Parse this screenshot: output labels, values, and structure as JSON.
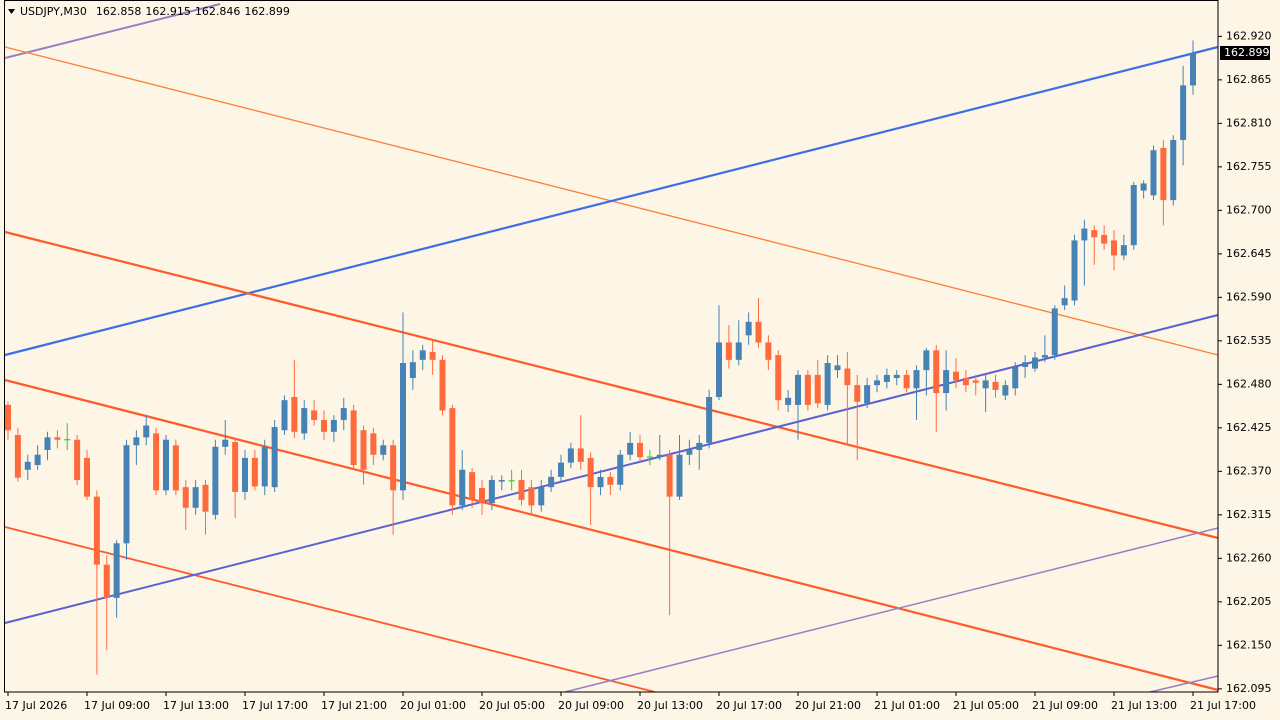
{
  "chart_data": {
    "type": "candlestick",
    "symbol": "USDJPY,M30",
    "categories": [
      "17 Jul 2026",
      null,
      null,
      null,
      null,
      null,
      null,
      null,
      "17 Jul 09:00",
      null,
      null,
      null,
      null,
      null,
      null,
      null,
      "17 Jul 13:00",
      null,
      null,
      null,
      null,
      null,
      null,
      null,
      "17 Jul 17:00",
      null,
      null,
      null,
      null,
      null,
      null,
      null,
      "17 Jul 21:00",
      null,
      null,
      null,
      null,
      null,
      null,
      null,
      "20 Jul 01:00",
      null,
      null,
      null,
      null,
      null,
      null,
      null,
      "20 Jul 05:00",
      null,
      null,
      null,
      null,
      null,
      null,
      null,
      "20 Jul 09:00",
      null,
      null,
      null,
      null,
      null,
      null,
      null,
      "20 Jul 13:00",
      null,
      null,
      null,
      null,
      null,
      null,
      null,
      "20 Jul 17:00",
      null,
      null,
      null,
      null,
      null,
      null,
      null,
      "20 Jul 21:00",
      null,
      null,
      null,
      null,
      null,
      null,
      null,
      "21 Jul 01:00",
      null,
      null,
      null,
      null,
      null,
      null,
      null,
      "21 Jul 05:00",
      null,
      null,
      null,
      null,
      null,
      null,
      null,
      "21 Jul 09:00",
      null,
      null,
      null,
      null,
      null,
      null,
      null,
      "21 Jul 13:00",
      null,
      null,
      null,
      null,
      null,
      null,
      null,
      "21 Jul 17:00"
    ],
    "open": [
      162.454,
      162.416,
      162.372,
      162.378,
      162.397,
      162.413,
      162.41,
      162.41,
      162.387,
      162.338,
      162.252,
      162.21,
      162.279,
      162.403,
      162.413,
      162.418,
      162.346,
      162.403,
      162.35,
      162.324,
      162.353,
      162.315,
      162.401,
      162.407,
      162.344,
      162.387,
      162.351,
      162.35,
      162.422,
      162.464,
      162.418,
      162.447,
      162.435,
      162.42,
      162.435,
      162.447,
      162.422,
      162.418,
      162.391,
      162.403,
      162.346,
      162.488,
      162.511,
      162.521,
      162.511,
      162.45,
      162.327,
      162.369,
      162.349,
      162.33,
      162.357,
      162.358,
      162.359,
      162.35,
      162.327,
      162.35,
      162.363,
      162.381,
      162.399,
      162.387,
      162.35,
      162.363,
      162.353,
      162.391,
      162.406,
      162.388,
      162.388,
      162.391,
      162.338,
      162.391,
      162.397,
      162.406,
      162.464,
      162.533,
      162.511,
      162.542,
      162.559,
      162.533,
      162.517,
      162.454,
      162.454,
      162.492,
      162.492,
      162.454,
      162.498,
      162.5,
      162.479,
      162.456,
      162.479,
      162.483,
      162.488,
      162.492,
      162.475,
      162.498,
      162.523,
      162.469,
      162.496,
      162.488,
      162.485,
      162.475,
      162.483,
      162.466,
      162.475,
      162.502,
      162.5,
      162.514,
      162.517,
      162.58,
      162.586,
      162.662,
      162.675,
      162.669,
      162.662,
      162.643,
      162.656,
      162.725,
      162.719,
      162.779,
      162.713,
      162.789,
      162.858
    ],
    "high": [
      162.458,
      162.425,
      162.391,
      162.403,
      162.42,
      162.422,
      162.431,
      162.416,
      162.397,
      162.346,
      162.264,
      162.283,
      162.41,
      162.422,
      162.441,
      162.425,
      162.416,
      162.41,
      162.359,
      162.359,
      162.359,
      162.41,
      162.435,
      162.412,
      162.397,
      162.397,
      162.41,
      162.435,
      162.466,
      162.511,
      162.46,
      162.46,
      162.447,
      162.441,
      162.463,
      162.454,
      162.428,
      162.425,
      162.41,
      162.41,
      162.571,
      162.523,
      162.53,
      162.536,
      162.517,
      162.454,
      162.397,
      162.374,
      162.359,
      162.365,
      162.365,
      162.372,
      162.372,
      162.359,
      162.359,
      162.372,
      162.391,
      162.406,
      162.441,
      162.394,
      162.372,
      162.369,
      162.397,
      162.42,
      162.416,
      162.397,
      162.416,
      162.397,
      162.416,
      162.41,
      162.416,
      162.473,
      162.58,
      162.555,
      162.561,
      162.571,
      162.589,
      162.542,
      162.523,
      162.473,
      162.498,
      162.498,
      162.511,
      162.517,
      162.517,
      162.521,
      162.492,
      162.488,
      162.492,
      162.5,
      162.498,
      162.498,
      162.504,
      162.526,
      162.53,
      162.523,
      162.513,
      162.498,
      162.492,
      162.492,
      162.492,
      162.485,
      162.508,
      162.517,
      162.521,
      162.542,
      162.58,
      162.605,
      162.669,
      162.688,
      162.681,
      162.681,
      162.675,
      162.669,
      162.736,
      162.738,
      162.782,
      162.789,
      162.795,
      162.883,
      162.915
    ],
    "low": [
      162.41,
      162.357,
      162.359,
      162.372,
      162.384,
      162.399,
      162.397,
      162.353,
      162.334,
      162.113,
      162.144,
      162.185,
      162.258,
      162.378,
      162.403,
      162.34,
      162.34,
      162.34,
      162.296,
      162.315,
      162.29,
      162.309,
      162.391,
      162.311,
      162.334,
      162.346,
      162.34,
      162.344,
      162.416,
      162.412,
      162.41,
      162.428,
      162.41,
      162.407,
      162.422,
      162.372,
      162.353,
      162.378,
      162.384,
      162.29,
      162.334,
      162.473,
      162.498,
      162.492,
      162.441,
      162.315,
      162.321,
      162.324,
      162.315,
      162.321,
      162.346,
      162.346,
      162.327,
      162.315,
      162.319,
      162.344,
      162.357,
      162.374,
      162.372,
      162.302,
      162.34,
      162.34,
      162.346,
      162.384,
      162.382,
      162.378,
      162.384,
      162.188,
      162.334,
      162.378,
      162.372,
      162.399,
      162.46,
      162.5,
      162.504,
      162.53,
      162.526,
      162.498,
      162.447,
      162.445,
      162.41,
      162.447,
      162.45,
      162.447,
      162.488,
      162.403,
      162.384,
      162.45,
      162.47,
      162.475,
      162.479,
      162.47,
      162.435,
      162.466,
      162.42,
      162.447,
      162.475,
      162.47,
      162.466,
      162.445,
      162.463,
      162.46,
      162.466,
      162.488,
      162.496,
      162.508,
      162.511,
      162.574,
      162.58,
      162.605,
      162.631,
      162.65,
      162.624,
      162.637,
      162.65,
      162.715,
      162.713,
      162.681,
      162.706,
      162.757,
      162.846
    ],
    "close": [
      162.422,
      162.362,
      162.382,
      162.391,
      162.413,
      162.41,
      162.41,
      162.359,
      162.338,
      162.252,
      162.21,
      162.279,
      162.403,
      162.413,
      162.428,
      162.346,
      162.41,
      162.346,
      162.324,
      162.35,
      162.319,
      162.401,
      162.41,
      162.344,
      162.387,
      162.351,
      162.401,
      162.426,
      162.46,
      162.42,
      162.45,
      162.435,
      162.42,
      162.435,
      162.45,
      162.378,
      162.372,
      162.391,
      162.403,
      162.346,
      162.507,
      162.508,
      162.523,
      162.511,
      162.447,
      162.327,
      162.372,
      162.334,
      162.33,
      162.359,
      162.359,
      162.358,
      162.334,
      162.327,
      162.35,
      162.363,
      162.381,
      162.399,
      162.382,
      162.35,
      162.363,
      162.353,
      162.391,
      162.406,
      162.388,
      162.388,
      162.391,
      162.338,
      162.391,
      162.397,
      162.406,
      162.464,
      162.533,
      162.511,
      162.533,
      162.559,
      162.533,
      162.511,
      162.46,
      162.463,
      162.492,
      162.454,
      162.456,
      162.507,
      162.504,
      162.479,
      162.458,
      162.479,
      162.485,
      162.492,
      162.492,
      162.475,
      162.498,
      162.523,
      162.469,
      162.498,
      162.485,
      162.479,
      162.482,
      162.485,
      162.473,
      162.479,
      162.502,
      162.508,
      162.514,
      162.517,
      162.576,
      162.589,
      162.662,
      162.677,
      162.666,
      162.658,
      162.643,
      162.656,
      162.732,
      162.734,
      162.776,
      162.713,
      162.789,
      162.858,
      162.899
    ],
    "up_color": "#4682b4",
    "down_color": "#ff6a3d",
    "doji_color": "#32cd32",
    "ylim": [
      162.091,
      162.966
    ],
    "yticks": [
      {
        "value": 162.92,
        "label": "162.920"
      },
      162.865,
      {
        "value": 162.81,
        "label": "162.810"
      },
      162.755,
      {
        "value": 162.7,
        "label": "162.700"
      },
      162.645,
      {
        "value": 162.59,
        "label": "162.590"
      },
      162.535,
      {
        "value": 162.48,
        "label": "162.480"
      },
      162.425,
      {
        "value": 162.37,
        "label": "162.370"
      },
      162.315,
      {
        "value": 162.26,
        "label": "162.260"
      },
      162.205,
      {
        "value": 162.15,
        "label": "162.150"
      },
      162.095
    ]
  }
}
